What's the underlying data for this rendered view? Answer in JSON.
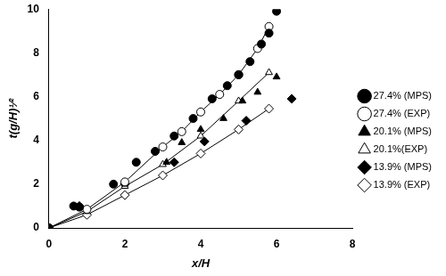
{
  "chart_data": {
    "type": "scatter",
    "x_label": "x/H",
    "y_label": "t(g/H)¹⁄²",
    "xlim": [
      0,
      8
    ],
    "xticks": [
      0,
      2,
      4,
      6,
      8
    ],
    "ylim": [
      0,
      10
    ],
    "yticks": [
      0,
      2,
      4,
      6,
      8,
      10
    ],
    "grid": false,
    "legend": "right",
    "series": [
      {
        "name": "27.4% (MPS)",
        "color": "#000000",
        "marker": "circle",
        "line_style": "none",
        "x": [
          0,
          0.65,
          0.8,
          1.7,
          2.3,
          2.8,
          3.3,
          3.8,
          4.3,
          4.7,
          5.0,
          5.3,
          5.6,
          5.8,
          6.0
        ],
        "values": [
          0,
          1.0,
          0.95,
          2.0,
          3.0,
          3.5,
          4.2,
          5.0,
          5.9,
          6.5,
          7.0,
          7.6,
          8.4,
          8.9,
          9.9
        ]
      },
      {
        "name": "27.4% (EXP)",
        "color": "#000000",
        "marker": "open-circle",
        "line_style": "solid",
        "x": [
          0,
          1.0,
          2.0,
          3.0,
          3.5,
          4.0,
          4.5,
          5.0,
          5.5,
          5.8
        ],
        "values": [
          0,
          0.85,
          2.1,
          3.7,
          4.4,
          5.3,
          6.1,
          7.0,
          8.2,
          9.2
        ]
      },
      {
        "name": "20.1% (MPS)",
        "color": "#000000",
        "marker": "triangle",
        "line_style": "none",
        "x": [
          0,
          0.7,
          2.0,
          3.1,
          3.5,
          4.0,
          4.6,
          5.1,
          5.5,
          6.0
        ],
        "values": [
          0,
          0.95,
          2.0,
          3.0,
          3.9,
          4.5,
          5.0,
          5.8,
          6.2,
          6.9
        ]
      },
      {
        "name": "20.1%(EXP)",
        "color": "#000000",
        "marker": "open-triangle",
        "line_style": "solid",
        "x": [
          0,
          1.0,
          2.0,
          3.0,
          4.0,
          5.0,
          5.8
        ],
        "values": [
          0,
          0.75,
          1.9,
          2.9,
          4.2,
          5.8,
          7.1
        ]
      },
      {
        "name": "13.9% (MPS)",
        "color": "#000000",
        "marker": "diamond",
        "line_style": "none",
        "x": [
          0,
          0.8,
          2.0,
          3.3,
          4.1,
          5.2,
          6.4
        ],
        "values": [
          0,
          1.0,
          2.0,
          3.0,
          3.95,
          4.9,
          5.9
        ]
      },
      {
        "name": "13.9% (EXP)",
        "color": "#000000",
        "marker": "open-diamond",
        "line_style": "solid",
        "x": [
          0,
          1.0,
          2.0,
          3.0,
          4.0,
          5.0,
          5.8
        ],
        "values": [
          0,
          0.6,
          1.5,
          2.4,
          3.4,
          4.5,
          5.45
        ]
      }
    ]
  }
}
